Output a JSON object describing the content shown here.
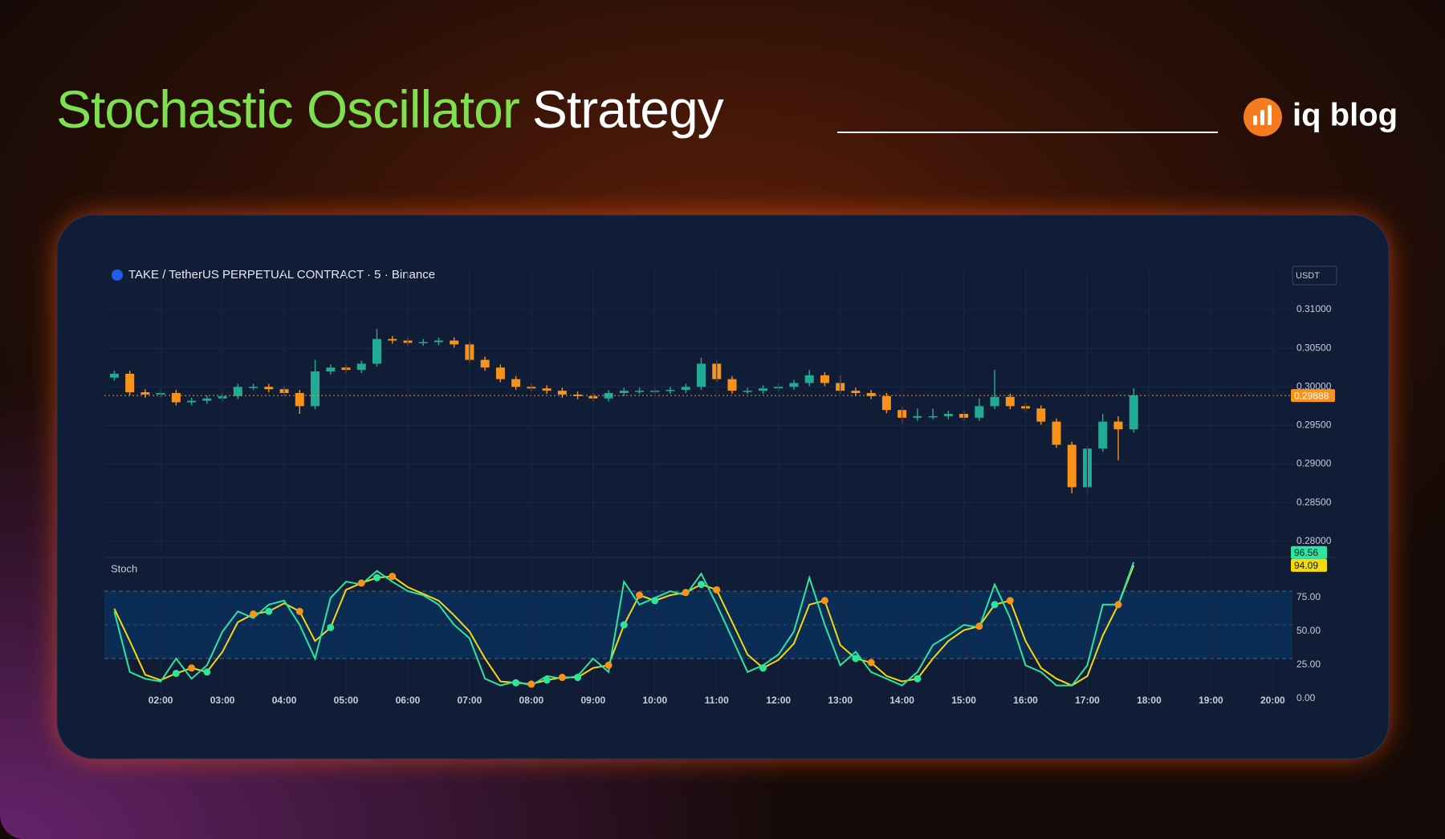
{
  "header": {
    "title_accent": "Stochastic Oscillator",
    "title_rest": "Strategy",
    "brand": "iq blog"
  },
  "chart_data": [
    {
      "type": "candlestick",
      "title": "TAKE / TetherUS PERPETUAL CONTRACT · 5 · Binance",
      "y_axis_label": "USDT",
      "x": [
        "01:15",
        "01:30",
        "01:45",
        "02:00",
        "02:15",
        "02:30",
        "02:45",
        "03:00",
        "03:15",
        "03:30",
        "03:45",
        "04:00",
        "04:15",
        "04:30",
        "04:45",
        "05:00",
        "05:15",
        "05:30",
        "05:45",
        "06:00",
        "06:15",
        "06:30",
        "06:45",
        "07:00",
        "07:15",
        "07:30",
        "07:45",
        "08:00",
        "08:15",
        "08:30",
        "08:45",
        "09:00",
        "09:15",
        "09:30",
        "09:45",
        "10:00",
        "10:15",
        "10:30",
        "10:45",
        "11:00",
        "11:15",
        "11:30",
        "11:45",
        "12:00",
        "12:15",
        "12:30",
        "12:45",
        "13:00",
        "13:15",
        "13:30",
        "13:45",
        "14:00",
        "14:15",
        "14:30",
        "14:45",
        "15:00",
        "15:15",
        "15:30",
        "15:45",
        "16:00",
        "16:15",
        "16:30",
        "16:45",
        "17:00",
        "17:15",
        "17:30",
        "17:45"
      ],
      "open": [
        0.3012,
        0.3017,
        0.2993,
        0.299,
        0.2992,
        0.298,
        0.2982,
        0.2985,
        0.2988,
        0.3,
        0.3,
        0.2997,
        0.2992,
        0.2975,
        0.302,
        0.3025,
        0.3022,
        0.303,
        0.3062,
        0.306,
        0.3057,
        0.3058,
        0.306,
        0.3055,
        0.3035,
        0.3025,
        0.301,
        0.3,
        0.2998,
        0.2995,
        0.299,
        0.2988,
        0.2985,
        0.2992,
        0.2995,
        0.2995,
        0.2995,
        0.2996,
        0.3,
        0.303,
        0.301,
        0.2995,
        0.2995,
        0.2998,
        0.3,
        0.3005,
        0.3015,
        0.3005,
        0.2995,
        0.2992,
        0.2988,
        0.297,
        0.296,
        0.2962,
        0.2962,
        0.2965,
        0.296,
        0.2975,
        0.2987,
        0.2975,
        0.2972,
        0.2955,
        0.2925,
        0.287,
        0.292,
        0.2955,
        0.2945
      ],
      "high": [
        0.3021,
        0.3021,
        0.2997,
        0.2996,
        0.2996,
        0.2986,
        0.2989,
        0.2992,
        0.3004,
        0.3004,
        0.3004,
        0.3001,
        0.2996,
        0.3035,
        0.3029,
        0.3029,
        0.3034,
        0.3075,
        0.3066,
        0.3064,
        0.3062,
        0.3064,
        0.3064,
        0.3059,
        0.3039,
        0.3029,
        0.3014,
        0.3004,
        0.3002,
        0.2999,
        0.2994,
        0.2992,
        0.2996,
        0.2999,
        0.2999,
        0.2999,
        0.3,
        0.3004,
        0.3038,
        0.3034,
        0.3014,
        0.2999,
        0.3002,
        0.3004,
        0.3009,
        0.3022,
        0.3019,
        0.3015,
        0.2999,
        0.2996,
        0.2992,
        0.2974,
        0.2972,
        0.2972,
        0.2969,
        0.2969,
        0.2985,
        0.3022,
        0.2991,
        0.2979,
        0.2976,
        0.2959,
        0.2929,
        0.2924,
        0.2965,
        0.2962,
        0.2998
      ],
      "low": [
        0.3008,
        0.2989,
        0.2986,
        0.2986,
        0.2976,
        0.2976,
        0.2978,
        0.2981,
        0.2984,
        0.2996,
        0.2993,
        0.2988,
        0.2965,
        0.2971,
        0.3016,
        0.3018,
        0.3018,
        0.3026,
        0.3056,
        0.3053,
        0.3053,
        0.3054,
        0.3051,
        0.3031,
        0.3021,
        0.3006,
        0.2996,
        0.2994,
        0.2991,
        0.2986,
        0.2984,
        0.2981,
        0.2981,
        0.2988,
        0.2991,
        0.2991,
        0.2991,
        0.2992,
        0.2996,
        0.3006,
        0.2991,
        0.2991,
        0.2991,
        0.2994,
        0.2996,
        0.3001,
        0.3001,
        0.2991,
        0.2988,
        0.2984,
        0.2966,
        0.2952,
        0.2956,
        0.2958,
        0.2958,
        0.2956,
        0.2956,
        0.2971,
        0.2971,
        0.2968,
        0.2951,
        0.2921,
        0.2862,
        0.2862,
        0.2916,
        0.2905,
        0.2941
      ],
      "close": [
        0.3017,
        0.2993,
        0.299,
        0.2992,
        0.298,
        0.2982,
        0.2985,
        0.2988,
        0.3,
        0.3,
        0.2997,
        0.2992,
        0.2975,
        0.302,
        0.3025,
        0.3022,
        0.303,
        0.3062,
        0.306,
        0.3057,
        0.3058,
        0.306,
        0.3055,
        0.3035,
        0.3025,
        0.301,
        0.3,
        0.2998,
        0.2995,
        0.299,
        0.2988,
        0.2985,
        0.2992,
        0.2995,
        0.2995,
        0.2995,
        0.2996,
        0.3,
        0.303,
        0.301,
        0.2995,
        0.2995,
        0.2998,
        0.3,
        0.3005,
        0.3015,
        0.3005,
        0.2995,
        0.2992,
        0.2988,
        0.297,
        0.296,
        0.2962,
        0.2962,
        0.2965,
        0.296,
        0.2975,
        0.2987,
        0.2975,
        0.2972,
        0.2955,
        0.2925,
        0.287,
        0.292,
        0.2955,
        0.2945,
        0.2989
      ],
      "up_color": "#22ab94",
      "down_color": "#f7931a",
      "last_price": 0.29888,
      "xlim": [
        "01:10",
        "20:20"
      ],
      "ylim": [
        0.278,
        0.3151
      ],
      "yticks": [
        {
          "value": 0.28,
          "label": "0.28000"
        },
        {
          "value": 0.285,
          "label": "0.28500"
        },
        {
          "value": 0.29,
          "label": "0.29000"
        },
        {
          "value": 0.295,
          "label": "0.29500"
        },
        {
          "value": 0.3,
          "label": "0.30000"
        },
        {
          "value": 0.305,
          "label": "0.30500"
        },
        {
          "value": 0.31,
          "label": "0.31000"
        }
      ],
      "grid": true
    },
    {
      "type": "line",
      "title": "Stoch",
      "x": [
        "01:15",
        "01:30",
        "01:45",
        "02:00",
        "02:15",
        "02:30",
        "02:45",
        "03:00",
        "03:15",
        "03:30",
        "03:45",
        "04:00",
        "04:15",
        "04:30",
        "04:45",
        "05:00",
        "05:15",
        "05:30",
        "05:45",
        "06:00",
        "06:15",
        "06:30",
        "06:45",
        "07:00",
        "07:15",
        "07:30",
        "07:45",
        "08:00",
        "08:15",
        "08:30",
        "08:45",
        "09:00",
        "09:15",
        "09:30",
        "09:45",
        "10:00",
        "10:15",
        "10:30",
        "10:45",
        "11:00",
        "11:15",
        "11:30",
        "11:45",
        "12:00",
        "12:15",
        "12:30",
        "12:45",
        "13:00",
        "13:15",
        "13:30",
        "13:45",
        "14:00",
        "14:15",
        "14:30",
        "14:45",
        "15:00",
        "15:15",
        "15:30",
        "15:45",
        "16:00",
        "16:15",
        "16:30",
        "16:45",
        "17:00",
        "17:15",
        "17:30",
        "17:45"
      ],
      "series": [
        {
          "color": "#2ee59d",
          "values": [
            60,
            15,
            10,
            8,
            25,
            10,
            20,
            45,
            60,
            55,
            65,
            68,
            50,
            25,
            70,
            82,
            80,
            90,
            82,
            75,
            72,
            65,
            50,
            40,
            10,
            5,
            8,
            5,
            12,
            10,
            12,
            25,
            15,
            82,
            65,
            70,
            75,
            72,
            88,
            65,
            40,
            15,
            20,
            28,
            45,
            85,
            50,
            20,
            30,
            15,
            10,
            5,
            15,
            35,
            42,
            50,
            48,
            80,
            55,
            20,
            15,
            5,
            5,
            20,
            65,
            65,
            96.56
          ]
        },
        {
          "color": "#f5d90a",
          "values": [
            62,
            38,
            13,
            9,
            14,
            18,
            15,
            30,
            52,
            58,
            60,
            66,
            60,
            38,
            48,
            76,
            81,
            85,
            86,
            78,
            73,
            68,
            57,
            45,
            25,
            8,
            7,
            6,
            9,
            11,
            11,
            18,
            20,
            50,
            72,
            68,
            72,
            74,
            80,
            76,
            52,
            28,
            18,
            24,
            36,
            65,
            68,
            35,
            25,
            22,
            12,
            8,
            10,
            25,
            38,
            46,
            49,
            65,
            68,
            38,
            18,
            10,
            5,
            12,
            42,
            65,
            94.09
          ]
        }
      ],
      "xlim": [
        "01:10",
        "20:20"
      ],
      "xticks": [
        "02:00",
        "03:00",
        "04:00",
        "05:00",
        "06:00",
        "07:00",
        "08:00",
        "09:00",
        "10:00",
        "11:00",
        "12:00",
        "13:00",
        "14:00",
        "15:00",
        "16:00",
        "17:00",
        "18:00",
        "19:00",
        "20:00"
      ],
      "ylim": [
        0,
        100
      ],
      "yticks": [
        {
          "value": 0,
          "label": "0.00"
        },
        {
          "value": 25,
          "label": "25.00"
        },
        {
          "value": 50,
          "label": "50.00"
        },
        {
          "value": 75,
          "label": "75.00"
        }
      ],
      "band_color": "#0b2c55"
    }
  ]
}
